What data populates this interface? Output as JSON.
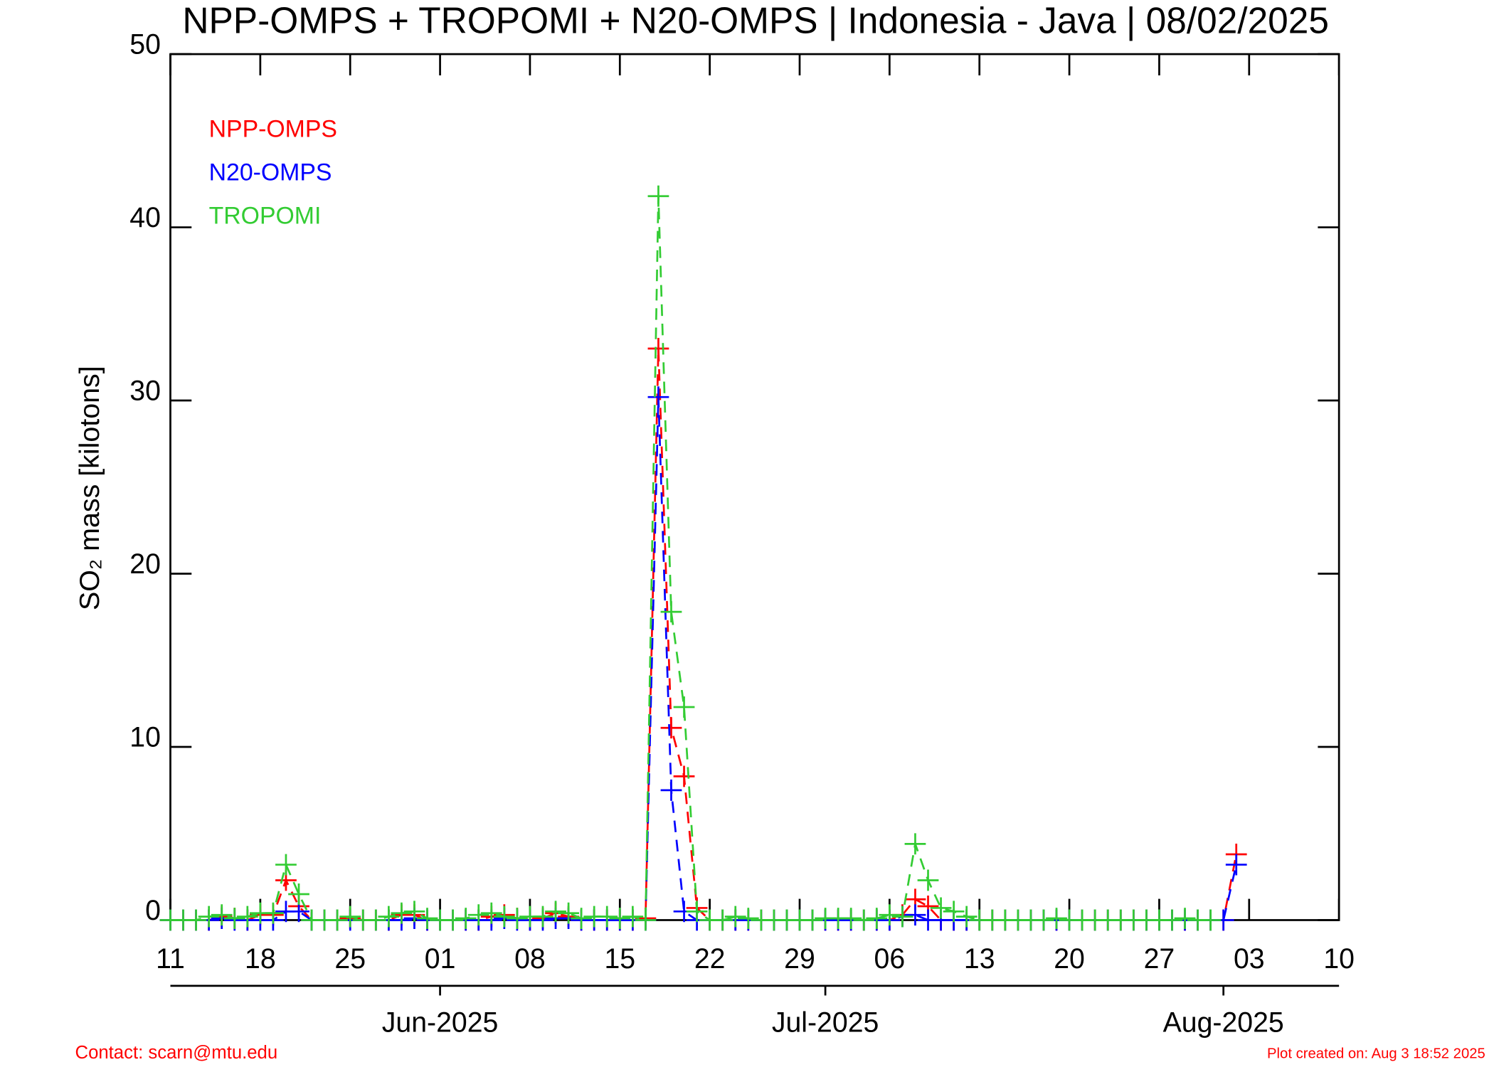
{
  "chart_data": {
    "type": "line",
    "title": "NPP-OMPS + TROPOMI + N20-OMPS | Indonesia - Java | 08/02/2025",
    "y_label": "SO₂ mass [kilotons]",
    "contact": "Contact: scarn@mtu.edu",
    "created": "Plot created on: Aug  3 18:52 2025",
    "x": [
      "2025-05-11",
      "2025-05-12",
      "2025-05-13",
      "2025-05-14",
      "2025-05-15",
      "2025-05-16",
      "2025-05-17",
      "2025-05-18",
      "2025-05-19",
      "2025-05-20",
      "2025-05-21",
      "2025-05-22",
      "2025-05-23",
      "2025-05-24",
      "2025-05-25",
      "2025-05-26",
      "2025-05-27",
      "2025-05-28",
      "2025-05-29",
      "2025-05-30",
      "2025-05-31",
      "2025-06-01",
      "2025-06-02",
      "2025-06-03",
      "2025-06-04",
      "2025-06-05",
      "2025-06-06",
      "2025-06-07",
      "2025-06-08",
      "2025-06-09",
      "2025-06-10",
      "2025-06-11",
      "2025-06-12",
      "2025-06-13",
      "2025-06-14",
      "2025-06-15",
      "2025-06-16",
      "2025-06-17",
      "2025-06-18",
      "2025-06-19",
      "2025-06-20",
      "2025-06-21",
      "2025-06-22",
      "2025-06-23",
      "2025-06-24",
      "2025-06-25",
      "2025-06-26",
      "2025-06-27",
      "2025-06-28",
      "2025-06-29",
      "2025-06-30",
      "2025-07-01",
      "2025-07-02",
      "2025-07-03",
      "2025-07-04",
      "2025-07-05",
      "2025-07-06",
      "2025-07-07",
      "2025-07-08",
      "2025-07-09",
      "2025-07-10",
      "2025-07-11",
      "2025-07-12",
      "2025-07-13",
      "2025-07-14",
      "2025-07-15",
      "2025-07-16",
      "2025-07-17",
      "2025-07-18",
      "2025-07-19",
      "2025-07-20",
      "2025-07-21",
      "2025-07-22",
      "2025-07-23",
      "2025-07-24",
      "2025-07-25",
      "2025-07-26",
      "2025-07-27",
      "2025-07-28",
      "2025-07-29",
      "2025-07-30",
      "2025-07-31",
      "2025-08-01",
      "2025-08-02"
    ],
    "series": [
      {
        "name": "NPP-OMPS",
        "color": "#ff0000",
        "values": [
          0,
          0,
          0,
          0,
          0.2,
          0.1,
          0,
          0.3,
          0.3,
          2.3,
          0.8,
          0,
          0,
          0,
          0.1,
          0,
          0,
          0,
          0.3,
          0.3,
          0,
          0,
          0,
          0,
          0,
          0.2,
          0.3,
          0.1,
          0,
          0.1,
          0.4,
          0.2,
          0,
          0,
          0,
          0,
          0,
          0.1,
          33,
          11.1,
          8.3,
          0.7,
          0,
          0,
          0,
          0,
          0,
          0,
          0,
          0,
          0,
          0,
          0,
          0,
          0,
          0,
          0,
          0.3,
          1.2,
          0.8,
          0,
          0,
          0,
          0,
          0,
          0,
          0,
          0,
          0,
          0,
          0,
          0,
          0,
          0,
          0,
          0,
          0,
          0,
          0,
          0,
          0,
          0,
          0,
          3.8
        ]
      },
      {
        "name": "N20-OMPS",
        "color": "#0000ff",
        "values": [
          0,
          0,
          0,
          0,
          0.1,
          0,
          0,
          0,
          0,
          0.5,
          0.5,
          0,
          0,
          0,
          0,
          0,
          0,
          0,
          0,
          0.1,
          0,
          0,
          0,
          0,
          0,
          0,
          0.1,
          0,
          0,
          0,
          0.1,
          0.1,
          0,
          0,
          0,
          0,
          0,
          0,
          30.2,
          7.5,
          0.5,
          0,
          0,
          0,
          0,
          0,
          0,
          0,
          0,
          0,
          0,
          0,
          0,
          0,
          0,
          0,
          0,
          0.2,
          0.3,
          0,
          0,
          0,
          0,
          0,
          0,
          0,
          0,
          0,
          0,
          0,
          0,
          0,
          0,
          0,
          0,
          0,
          0,
          0,
          0,
          0,
          0,
          0,
          0,
          3.2
        ]
      },
      {
        "name": "TROPOMI",
        "color": "#33cc33",
        "values": [
          0,
          0,
          0,
          0.2,
          0.3,
          0.1,
          0.2,
          0.4,
          0.4,
          3.2,
          1.5,
          0,
          0,
          0,
          0.2,
          0,
          0,
          0.2,
          0.4,
          0.5,
          0.1,
          0,
          0,
          0.1,
          0.3,
          0.4,
          0.2,
          0.1,
          0.2,
          0.2,
          0.5,
          0.4,
          0.1,
          0.2,
          0.2,
          0.1,
          0.2,
          0,
          41.8,
          17.8,
          12.3,
          0.5,
          0,
          0,
          0.2,
          0.1,
          0,
          0,
          0,
          0,
          0,
          0.1,
          0.1,
          0.1,
          0,
          0.1,
          0.3,
          0.2,
          4.4,
          2.3,
          0.7,
          0.5,
          0.2,
          0,
          0,
          0,
          0,
          0,
          0,
          0.1,
          0,
          0,
          0,
          0,
          0,
          0,
          0,
          0,
          0,
          0.1,
          0,
          0,
          null,
          null
        ]
      }
    ],
    "xlim": [
      "2025-05-11",
      "2025-08-10"
    ],
    "xticks": [
      {
        "value": "2025-05-11",
        "label": "11"
      },
      {
        "value": "2025-05-18",
        "label": "18"
      },
      {
        "value": "2025-05-25",
        "label": "25"
      },
      {
        "value": "2025-06-01",
        "label": "01"
      },
      {
        "value": "2025-06-08",
        "label": "08"
      },
      {
        "value": "2025-06-15",
        "label": "15"
      },
      {
        "value": "2025-06-22",
        "label": "22"
      },
      {
        "value": "2025-06-29",
        "label": "29"
      },
      {
        "value": "2025-07-06",
        "label": "06"
      },
      {
        "value": "2025-07-13",
        "label": "13"
      },
      {
        "value": "2025-07-20",
        "label": "20"
      },
      {
        "value": "2025-07-27",
        "label": "27"
      },
      {
        "value": "2025-08-03",
        "label": "03"
      },
      {
        "value": "2025-08-10",
        "label": "10"
      }
    ],
    "month_ticks": [
      {
        "value": "2025-06-01",
        "label": "Jun-2025"
      },
      {
        "value": "2025-07-01",
        "label": "Jul-2025"
      },
      {
        "value": "2025-08-01",
        "label": "Aug-2025"
      }
    ],
    "ylim": [
      0,
      50
    ],
    "yticks": [
      0,
      10,
      20,
      30,
      40,
      50
    ],
    "legend": "top-left",
    "dashed": true,
    "markers": "+"
  }
}
